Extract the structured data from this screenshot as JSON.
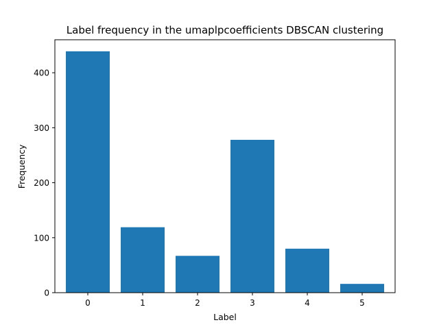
{
  "chart_data": {
    "type": "bar",
    "title": "Label frequency in the umaplpcoefficients DBSCAN clustering",
    "xlabel": "Label",
    "ylabel": "Frequency",
    "categories": [
      "0",
      "1",
      "2",
      "3",
      "4",
      "5"
    ],
    "values": [
      439,
      119,
      67,
      278,
      80,
      16
    ],
    "ylim": [
      0,
      460
    ],
    "yticks": [
      0,
      100,
      200,
      300,
      400
    ],
    "bar_color": "#1f77b4",
    "grid": false
  }
}
